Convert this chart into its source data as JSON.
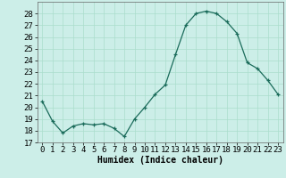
{
  "x": [
    0,
    1,
    2,
    3,
    4,
    5,
    6,
    7,
    8,
    9,
    10,
    11,
    12,
    13,
    14,
    15,
    16,
    17,
    18,
    19,
    20,
    21,
    22,
    23
  ],
  "y": [
    20.5,
    18.8,
    17.8,
    18.4,
    18.6,
    18.5,
    18.6,
    18.2,
    17.5,
    19.0,
    20.0,
    21.1,
    21.9,
    24.5,
    27.0,
    28.0,
    28.2,
    28.0,
    27.3,
    26.3,
    23.8,
    23.3,
    22.3,
    21.1
  ],
  "xlabel": "Humidex (Indice chaleur)",
  "ylim": [
    17,
    29
  ],
  "xlim": [
    -0.5,
    23.5
  ],
  "yticks": [
    17,
    18,
    19,
    20,
    21,
    22,
    23,
    24,
    25,
    26,
    27,
    28
  ],
  "xticks": [
    0,
    1,
    2,
    3,
    4,
    5,
    6,
    7,
    8,
    9,
    10,
    11,
    12,
    13,
    14,
    15,
    16,
    17,
    18,
    19,
    20,
    21,
    22,
    23
  ],
  "line_color": "#1a6b5a",
  "marker": "+",
  "bg_color": "#cceee8",
  "grid_color": "#aaddcc",
  "label_fontsize": 7,
  "tick_fontsize": 6.5
}
